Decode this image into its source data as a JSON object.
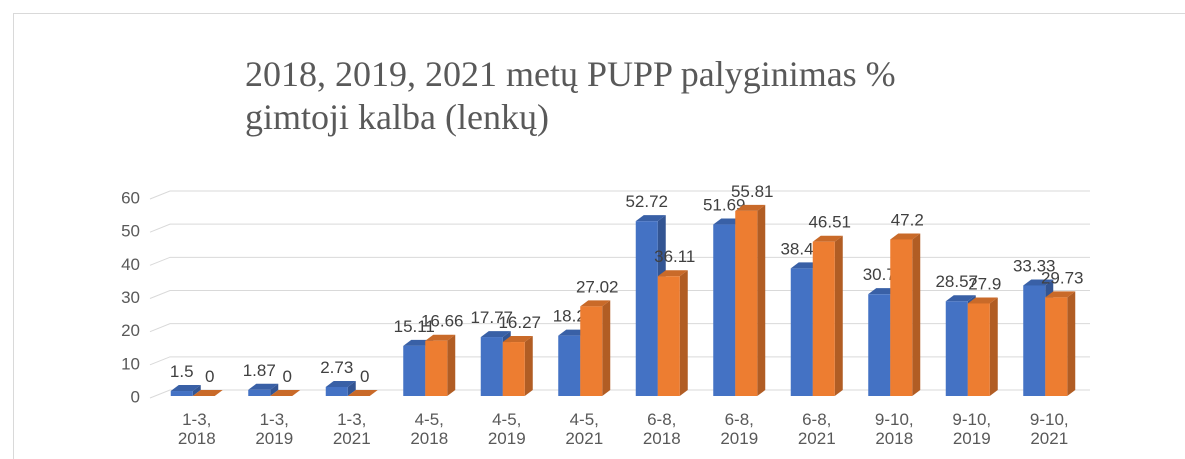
{
  "chart_data": {
    "type": "bar3d",
    "title": [
      "2018, 2019, 2021 metų PUPP palyginimas %",
      "gimtoji kalba (lenkų)"
    ],
    "categories": [
      "1-3, 2018",
      "1-3, 2019",
      "1-3, 2021",
      "4-5, 2018",
      "4-5, 2019",
      "4-5, 2021",
      "6-8, 2018",
      "6-8, 2019",
      "6-8, 2021",
      "9-10, 2018",
      "9-10, 2019",
      "9-10, 2021"
    ],
    "series": [
      {
        "color": "#4472c4",
        "values": [
          1.5,
          1.87,
          2.73,
          15.11,
          17.77,
          18.2,
          52.72,
          51.69,
          38.47,
          30.7,
          28.57,
          33.33
        ]
      },
      {
        "color": "#ed7d31",
        "values": [
          0,
          0,
          0,
          16.66,
          16.27,
          27.02,
          36.11,
          55.81,
          46.51,
          47.2,
          27.9,
          29.73
        ]
      }
    ],
    "ylim": [
      0,
      60
    ],
    "yticks": [
      0,
      10,
      20,
      30,
      40,
      50,
      60
    ],
    "grid": true
  }
}
